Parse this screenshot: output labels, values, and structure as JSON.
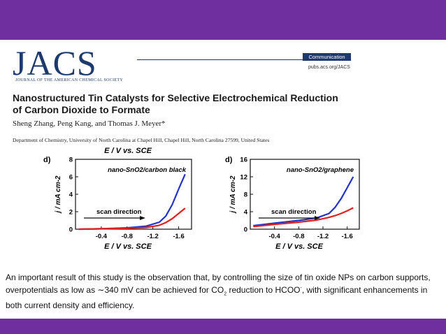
{
  "header": {
    "logo_text": "JACS",
    "logo_subtitle": "JOURNAL OF THE AMERICAN CHEMICAL SOCIETY",
    "badge": "Communication",
    "url": "pubs.acs.org/JACS"
  },
  "article": {
    "title_line1": "Nanostructured Tin Catalysts for Selective Electrochemical Reduction",
    "title_line2": "of Carbon Dioxide to Formate",
    "authors": "Sheng Zhang, Peng Kang, and Thomas J. Meyer*",
    "affiliation": "Department of Chemistry, University of North Carolina at Chapel Hill, Chapel Hill, North Carolina 27599, United States"
  },
  "chart_data": [
    {
      "type": "line",
      "panel": "d)",
      "title": "E / V vs. SCE",
      "xlabel": "E / V vs. SCE",
      "ylabel": "j / mA cm-2",
      "xlim": [
        0.0,
        -1.8
      ],
      "ylim": [
        0,
        8
      ],
      "xticks": [
        -0.4,
        -0.8,
        -1.2,
        -1.6
      ],
      "yticks": [
        0,
        2,
        4,
        6,
        8
      ],
      "annotation": "nano-SnO2/carbon black",
      "arrow_label": "scan direction",
      "series": [
        {
          "color": "#2233cc",
          "x": [
            -0.05,
            -0.4,
            -0.8,
            -1.1,
            -1.3,
            -1.4,
            -1.5,
            -1.6,
            -1.7
          ],
          "y": [
            0.0,
            0.05,
            0.15,
            0.35,
            0.8,
            1.5,
            2.8,
            4.6,
            6.3
          ]
        },
        {
          "color": "#e02020",
          "x": [
            -0.05,
            -0.4,
            -0.8,
            -1.1,
            -1.3,
            -1.4,
            -1.5,
            -1.6,
            -1.7
          ],
          "y": [
            0.0,
            0.05,
            0.1,
            0.2,
            0.45,
            0.75,
            1.2,
            1.8,
            2.4
          ]
        }
      ]
    },
    {
      "type": "line",
      "panel": "d)",
      "xlabel": "E / V vs. SCE",
      "ylabel": "j / mA cm-2",
      "xlim": [
        0.0,
        -1.8
      ],
      "ylim": [
        0,
        16
      ],
      "xticks": [
        -0.4,
        -0.8,
        -1.2,
        -1.6
      ],
      "yticks": [
        0,
        4,
        8,
        12,
        16
      ],
      "annotation": "nano-SnO2/graphene",
      "arrow_label": "scan direction",
      "series": [
        {
          "color": "#2233cc",
          "x": [
            -0.05,
            -0.4,
            -0.8,
            -1.1,
            -1.3,
            -1.4,
            -1.5,
            -1.6,
            -1.7
          ],
          "y": [
            0.8,
            1.4,
            2.0,
            2.6,
            3.6,
            5.0,
            7.0,
            9.5,
            12.0
          ]
        },
        {
          "color": "#e02020",
          "x": [
            -0.05,
            -0.4,
            -0.8,
            -1.1,
            -1.3,
            -1.4,
            -1.5,
            -1.6,
            -1.7
          ],
          "y": [
            0.6,
            1.1,
            1.6,
            2.1,
            2.7,
            3.1,
            3.6,
            4.2,
            4.9
          ]
        }
      ]
    }
  ],
  "caption": {
    "part1": "An important result of this study is the observation that, by controlling the size of tin oxide NPs on carbon supports, overpotentials as low as ∼340 mV can be achieved for CO",
    "sub": "2",
    "part2": " reduction to HCOO",
    "sup": "-",
    "part3": ", with significant enhancements in both current density and efficiency."
  },
  "colors": {
    "bar": "#6f2f9f",
    "jacs_blue": "#1d3a6e"
  }
}
